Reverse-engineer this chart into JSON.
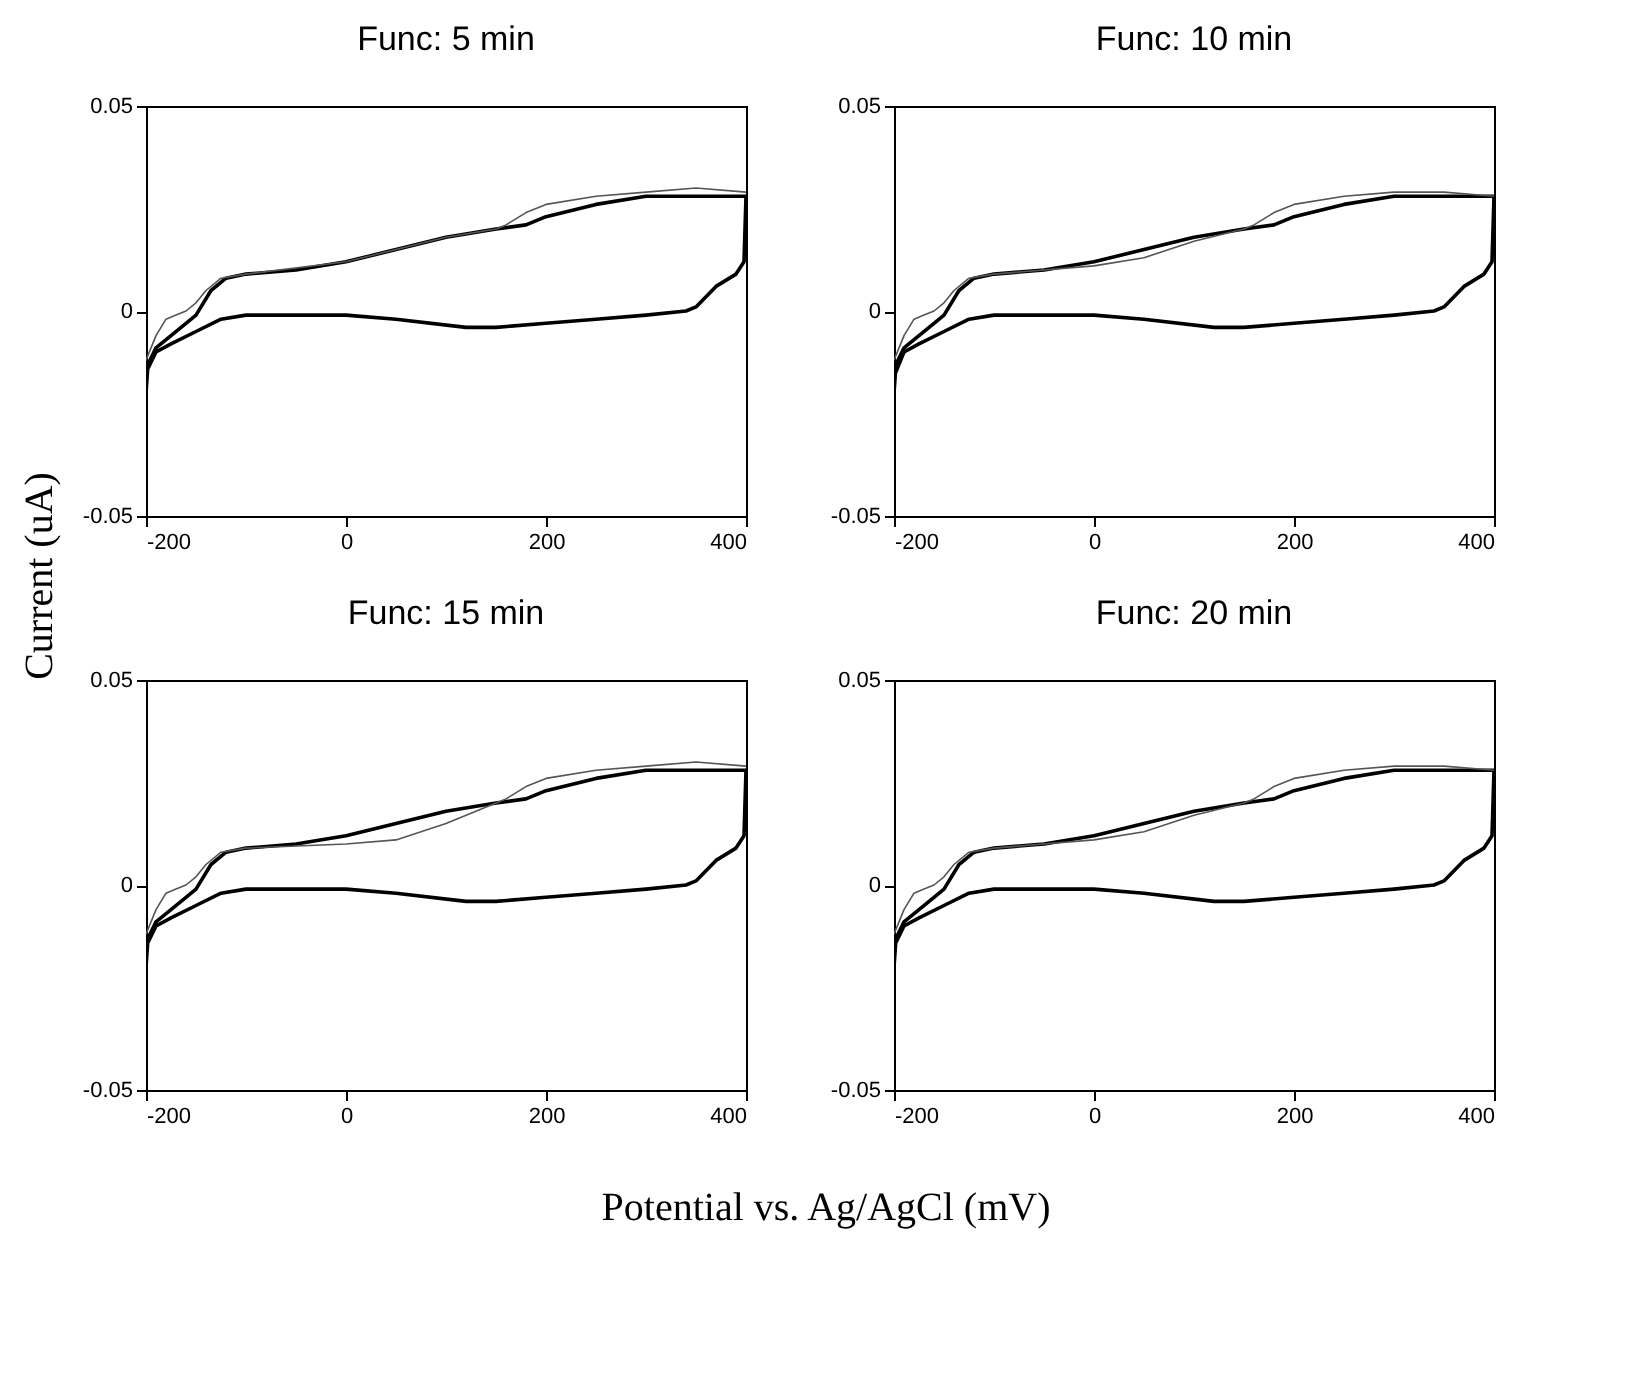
{
  "chart_data": [
    {
      "type": "line",
      "title": "Func: 5 min",
      "ylabel": "Current (uA)",
      "xlim": [
        -200,
        400
      ],
      "ylim": [
        -0.05,
        0.05
      ],
      "xticks": [
        -200,
        0,
        200,
        400
      ],
      "yticks": [
        -0.05,
        0,
        0.05
      ],
      "grid": false,
      "series": [
        {
          "color": "#000000",
          "x": [
            -200,
            -198,
            -190,
            -175,
            -160,
            -150,
            -135,
            -120,
            -100,
            -50,
            0,
            50,
            100,
            150,
            180,
            200,
            250,
            300,
            350,
            400,
            398,
            390,
            370,
            350,
            340,
            300,
            250,
            200,
            150,
            120,
            50,
            0,
            -50,
            -100,
            -125,
            -150,
            -175,
            -190,
            -200
          ],
          "values": [
            -0.02,
            -0.013,
            -0.009,
            -0.006,
            -0.003,
            -0.001,
            0.005,
            0.008,
            0.009,
            0.01,
            0.012,
            0.015,
            0.018,
            0.02,
            0.021,
            0.023,
            0.026,
            0.028,
            0.028,
            0.028,
            0.012,
            0.009,
            0.006,
            0.001,
            0.0,
            -0.001,
            -0.002,
            -0.003,
            -0.004,
            -0.004,
            -0.002,
            -0.001,
            -0.001,
            -0.001,
            -0.002,
            -0.005,
            -0.008,
            -0.01,
            -0.015
          ]
        },
        {
          "color": "#555555",
          "x": [
            -200,
            -190,
            -180,
            -170,
            -160,
            -150,
            -140,
            -125,
            -100,
            0,
            100,
            150,
            160,
            180,
            200,
            250,
            300,
            350,
            400
          ],
          "values": [
            -0.012,
            -0.006,
            -0.002,
            -0.001,
            0.0,
            0.002,
            0.005,
            0.008,
            0.009,
            0.012,
            0.018,
            0.02,
            0.021,
            0.024,
            0.026,
            0.028,
            0.029,
            0.03,
            0.029
          ]
        }
      ]
    },
    {
      "type": "line",
      "title": "Func: 10 min",
      "xlim": [
        -200,
        400
      ],
      "ylim": [
        -0.05,
        0.05
      ],
      "xticks": [
        -200,
        0,
        200,
        400
      ],
      "yticks": [
        -0.05,
        0,
        0.05
      ],
      "grid": false,
      "series": [
        {
          "color": "#000000",
          "x": [
            -200,
            -198,
            -190,
            -175,
            -160,
            -150,
            -135,
            -120,
            -100,
            -50,
            0,
            50,
            100,
            150,
            180,
            200,
            250,
            300,
            350,
            400,
            398,
            390,
            370,
            350,
            340,
            300,
            250,
            200,
            150,
            120,
            50,
            0,
            -50,
            -100,
            -125,
            -150,
            -175,
            -190,
            -200
          ],
          "values": [
            -0.02,
            -0.013,
            -0.009,
            -0.006,
            -0.003,
            -0.001,
            0.005,
            0.008,
            0.009,
            0.01,
            0.012,
            0.015,
            0.018,
            0.02,
            0.021,
            0.023,
            0.026,
            0.028,
            0.028,
            0.028,
            0.012,
            0.009,
            0.006,
            0.001,
            0.0,
            -0.001,
            -0.002,
            -0.003,
            -0.004,
            -0.004,
            -0.002,
            -0.001,
            -0.001,
            -0.001,
            -0.002,
            -0.005,
            -0.008,
            -0.01,
            -0.016
          ]
        },
        {
          "color": "#555555",
          "x": [
            -200,
            -190,
            -180,
            -170,
            -160,
            -150,
            -140,
            -125,
            -100,
            0,
            50,
            100,
            150,
            160,
            180,
            200,
            250,
            300,
            350,
            400
          ],
          "values": [
            -0.012,
            -0.006,
            -0.002,
            -0.001,
            0.0,
            0.002,
            0.005,
            0.008,
            0.009,
            0.011,
            0.013,
            0.017,
            0.02,
            0.021,
            0.024,
            0.026,
            0.028,
            0.029,
            0.029,
            0.028
          ]
        }
      ]
    },
    {
      "type": "line",
      "title": "Func: 15 min",
      "xlim": [
        -200,
        400
      ],
      "ylim": [
        -0.05,
        0.05
      ],
      "xticks": [
        -200,
        0,
        200,
        400
      ],
      "yticks": [
        -0.05,
        0,
        0.05
      ],
      "grid": false,
      "series": [
        {
          "color": "#000000",
          "x": [
            -200,
            -198,
            -190,
            -175,
            -160,
            -150,
            -135,
            -120,
            -100,
            -50,
            0,
            50,
            100,
            150,
            180,
            200,
            250,
            300,
            350,
            400,
            398,
            390,
            370,
            350,
            340,
            300,
            250,
            200,
            150,
            120,
            50,
            0,
            -50,
            -100,
            -125,
            -150,
            -175,
            -190,
            -200
          ],
          "values": [
            -0.02,
            -0.013,
            -0.009,
            -0.006,
            -0.003,
            -0.001,
            0.005,
            0.008,
            0.009,
            0.01,
            0.012,
            0.015,
            0.018,
            0.02,
            0.021,
            0.023,
            0.026,
            0.028,
            0.028,
            0.028,
            0.012,
            0.009,
            0.006,
            0.001,
            0.0,
            -0.001,
            -0.002,
            -0.003,
            -0.004,
            -0.004,
            -0.002,
            -0.001,
            -0.001,
            -0.001,
            -0.002,
            -0.005,
            -0.008,
            -0.01,
            -0.015
          ]
        },
        {
          "color": "#555555",
          "x": [
            -200,
            -190,
            -180,
            -170,
            -160,
            -150,
            -140,
            -125,
            -100,
            0,
            50,
            100,
            150,
            160,
            180,
            200,
            250,
            300,
            350,
            400
          ],
          "values": [
            -0.012,
            -0.006,
            -0.002,
            -0.001,
            0.0,
            0.002,
            0.005,
            0.008,
            0.009,
            0.01,
            0.011,
            0.015,
            0.02,
            0.021,
            0.024,
            0.026,
            0.028,
            0.029,
            0.03,
            0.029
          ]
        }
      ]
    },
    {
      "type": "line",
      "title": "Func: 20 min",
      "xlabel": "Potential vs. Ag/AgCl (mV)",
      "xlim": [
        -200,
        400
      ],
      "ylim": [
        -0.05,
        0.05
      ],
      "xticks": [
        -200,
        0,
        200,
        400
      ],
      "yticks": [
        -0.05,
        0,
        0.05
      ],
      "grid": false,
      "series": [
        {
          "color": "#000000",
          "x": [
            -200,
            -198,
            -190,
            -175,
            -160,
            -150,
            -135,
            -120,
            -100,
            -50,
            0,
            50,
            100,
            150,
            180,
            200,
            250,
            300,
            350,
            400,
            398,
            390,
            370,
            350,
            340,
            300,
            250,
            200,
            150,
            120,
            50,
            0,
            -50,
            -100,
            -125,
            -150,
            -175,
            -190,
            -200
          ],
          "values": [
            -0.02,
            -0.013,
            -0.009,
            -0.006,
            -0.003,
            -0.001,
            0.005,
            0.008,
            0.009,
            0.01,
            0.012,
            0.015,
            0.018,
            0.02,
            0.021,
            0.023,
            0.026,
            0.028,
            0.028,
            0.028,
            0.012,
            0.009,
            0.006,
            0.001,
            0.0,
            -0.001,
            -0.002,
            -0.003,
            -0.004,
            -0.004,
            -0.002,
            -0.001,
            -0.001,
            -0.001,
            -0.002,
            -0.005,
            -0.008,
            -0.01,
            -0.015
          ]
        },
        {
          "color": "#555555",
          "x": [
            -200,
            -190,
            -180,
            -170,
            -160,
            -150,
            -140,
            -125,
            -100,
            0,
            50,
            100,
            150,
            160,
            180,
            200,
            250,
            300,
            350,
            400
          ],
          "values": [
            -0.012,
            -0.006,
            -0.002,
            -0.001,
            0.0,
            0.002,
            0.005,
            0.008,
            0.009,
            0.011,
            0.013,
            0.017,
            0.02,
            0.021,
            0.024,
            0.026,
            0.028,
            0.029,
            0.029,
            0.028
          ]
        }
      ]
    }
  ]
}
